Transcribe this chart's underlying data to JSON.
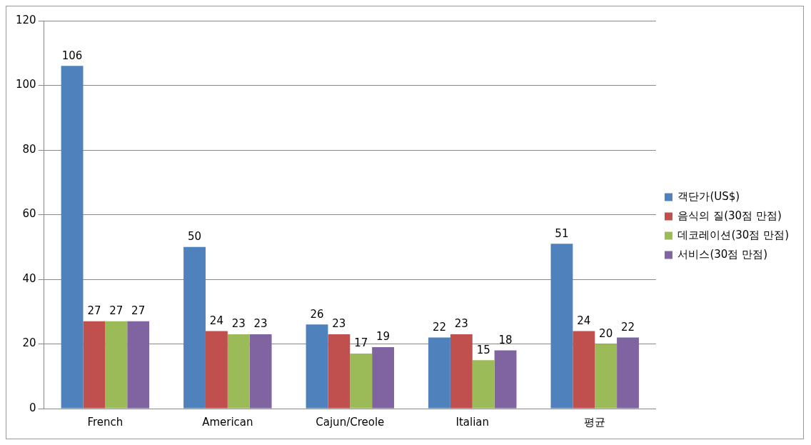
{
  "chart_data": {
    "type": "bar",
    "categories": [
      "French",
      "American",
      "Cajun/Creole",
      "Italian",
      "평균"
    ],
    "series": [
      {
        "name": "객단가(US$)",
        "color": "#4f81bd",
        "values": [
          106,
          50,
          26,
          22,
          51
        ]
      },
      {
        "name": "음식의 질(30점 만점)",
        "color": "#c0504d",
        "values": [
          27,
          24,
          23,
          23,
          24
        ]
      },
      {
        "name": "데코레이션(30점 만점)",
        "color": "#9bbb59",
        "values": [
          27,
          23,
          17,
          15,
          20
        ]
      },
      {
        "name": "서비스(30점 만점)",
        "color": "#8064a2",
        "values": [
          27,
          23,
          19,
          18,
          22
        ]
      }
    ],
    "ylim": [
      0,
      120
    ],
    "yticks": [
      0,
      20,
      40,
      60,
      80,
      100,
      120
    ],
    "grid": "y",
    "legend": "right",
    "data_labels": true
  }
}
